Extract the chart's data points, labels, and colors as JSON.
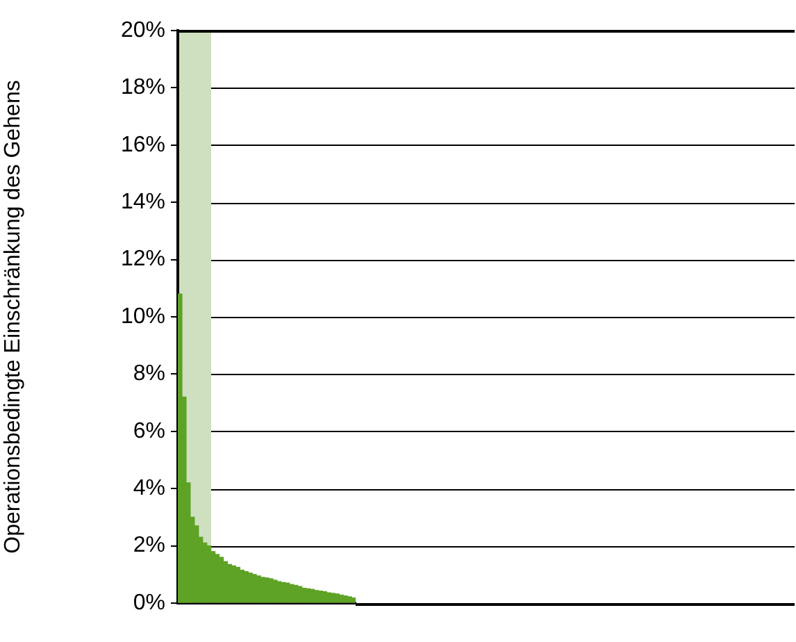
{
  "chart_data": {
    "type": "bar",
    "ylabel": "Operationsbedingte Einschränkung des Gehens",
    "categories": [
      null,
      null,
      null,
      null,
      null,
      null,
      null,
      null,
      null,
      null,
      null,
      null,
      null,
      null,
      null,
      null,
      null,
      null,
      null,
      null,
      null,
      null,
      null,
      null,
      null,
      null,
      null,
      null,
      null,
      null,
      null,
      null,
      null,
      null,
      null,
      null,
      null,
      null,
      null,
      null,
      null,
      null,
      null
    ],
    "series": [
      {
        "color": "#5ea226",
        "values": [
          10.8,
          7.2,
          4.2,
          3.0,
          2.7,
          2.3,
          2.1,
          2.0,
          1.8,
          1.7,
          1.6,
          1.45,
          1.35,
          1.3,
          1.25,
          1.15,
          1.1,
          1.05,
          1.0,
          0.95,
          0.9,
          0.88,
          0.85,
          0.8,
          0.75,
          0.72,
          0.7,
          0.65,
          0.62,
          0.58,
          0.52,
          0.5,
          0.48,
          0.44,
          0.42,
          0.4,
          0.36,
          0.34,
          0.32,
          0.28,
          0.25,
          0.22,
          0.18
        ]
      }
    ],
    "ylim": [
      0,
      20
    ],
    "yticks": [
      {
        "value": 0,
        "label": "0%"
      },
      {
        "value": 2,
        "label": "2%"
      },
      {
        "value": 4,
        "label": "4%"
      },
      {
        "value": 6,
        "label": "6%"
      },
      {
        "value": 8,
        "label": "8%"
      },
      {
        "value": 10,
        "label": "10%"
      },
      {
        "value": 12,
        "label": "12%"
      },
      {
        "value": 14,
        "label": "14%"
      },
      {
        "value": 16,
        "label": "16%"
      },
      {
        "value": 18,
        "label": "18%"
      },
      {
        "value": 20,
        "label": "20%"
      }
    ],
    "grid": "y",
    "legend": false,
    "tick_labels": "y"
  }
}
